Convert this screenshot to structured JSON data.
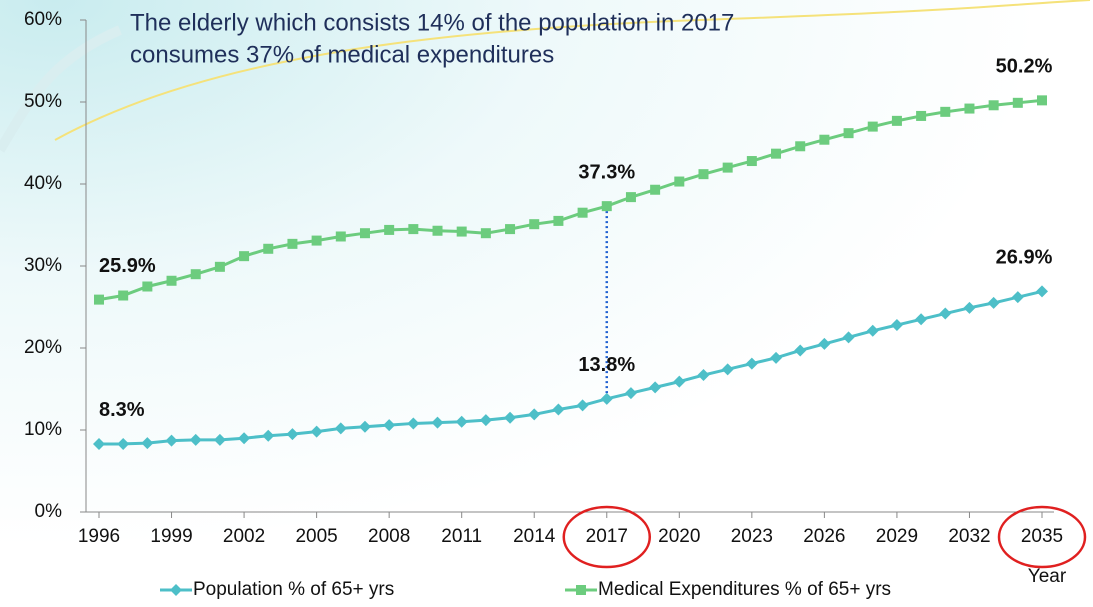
{
  "chart_data": {
    "type": "line",
    "title": [
      "The elderly which consists 14% of the population in 2017",
      "consumes 37% of medical expenditures"
    ],
    "x_label": "Year",
    "x": [
      1996,
      1997,
      1998,
      1999,
      2000,
      2001,
      2002,
      2003,
      2004,
      2005,
      2006,
      2007,
      2008,
      2009,
      2010,
      2011,
      2012,
      2013,
      2014,
      2015,
      2016,
      2017,
      2018,
      2019,
      2020,
      2021,
      2022,
      2023,
      2024,
      2025,
      2026,
      2027,
      2028,
      2029,
      2030,
      2031,
      2032,
      2033,
      2034,
      2035
    ],
    "series": [
      {
        "name": "Population % of 65+ yrs",
        "color": "#4dbfc8",
        "marker": "diamond",
        "values": [
          8.3,
          8.3,
          8.4,
          8.7,
          8.8,
          8.8,
          9.0,
          9.3,
          9.5,
          9.8,
          10.2,
          10.4,
          10.6,
          10.8,
          10.9,
          11.0,
          11.2,
          11.5,
          11.9,
          12.5,
          13.0,
          13.8,
          14.5,
          15.2,
          15.9,
          16.7,
          17.4,
          18.1,
          18.8,
          19.7,
          20.5,
          21.3,
          22.1,
          22.8,
          23.5,
          24.2,
          24.9,
          25.5,
          26.2,
          26.9
        ],
        "value_labels": [
          "8.3%",
          null,
          null,
          null,
          null,
          null,
          null,
          null,
          null,
          null,
          null,
          null,
          null,
          null,
          null,
          null,
          null,
          null,
          null,
          null,
          null,
          "13.8%",
          null,
          null,
          null,
          null,
          null,
          null,
          null,
          null,
          null,
          null,
          null,
          null,
          null,
          null,
          null,
          null,
          null,
          "26.9%"
        ]
      },
      {
        "name": "Medical Expenditures % of 65+ yrs",
        "color": "#6ccc7e",
        "marker": "square",
        "values": [
          25.9,
          26.4,
          27.5,
          28.2,
          29.0,
          29.9,
          31.2,
          32.1,
          32.7,
          33.1,
          33.6,
          34.0,
          34.4,
          34.5,
          34.3,
          34.2,
          34.0,
          34.5,
          35.1,
          35.5,
          36.5,
          37.3,
          38.4,
          39.3,
          40.3,
          41.2,
          42.0,
          42.8,
          43.7,
          44.6,
          45.4,
          46.2,
          47.0,
          47.7,
          48.3,
          48.8,
          49.2,
          49.6,
          49.9,
          50.2
        ],
        "value_labels": [
          "25.9%",
          null,
          null,
          null,
          null,
          null,
          null,
          null,
          null,
          null,
          null,
          null,
          null,
          null,
          null,
          null,
          null,
          null,
          null,
          null,
          null,
          "37.3%",
          null,
          null,
          null,
          null,
          null,
          null,
          null,
          null,
          null,
          null,
          null,
          null,
          null,
          null,
          null,
          null,
          null,
          "50.2%"
        ]
      }
    ],
    "xlim": [
      1996,
      2035
    ],
    "xticks": [
      1996,
      1999,
      2002,
      2005,
      2008,
      2011,
      2014,
      2017,
      2020,
      2023,
      2026,
      2029,
      2032,
      2035
    ],
    "ylim": [
      0,
      60
    ],
    "yticks": [
      {
        "value": 0,
        "label": "0%"
      },
      {
        "value": 10,
        "label": "10%"
      },
      {
        "value": 20,
        "label": "20%"
      },
      {
        "value": 30,
        "label": "30%"
      },
      {
        "value": 40,
        "label": "40%"
      },
      {
        "value": 50,
        "label": "50%"
      },
      {
        "value": 60,
        "label": "60%"
      }
    ],
    "highlight": {
      "x": [
        2017,
        2035
      ],
      "color": "#e02020"
    },
    "legend": "bottom"
  }
}
